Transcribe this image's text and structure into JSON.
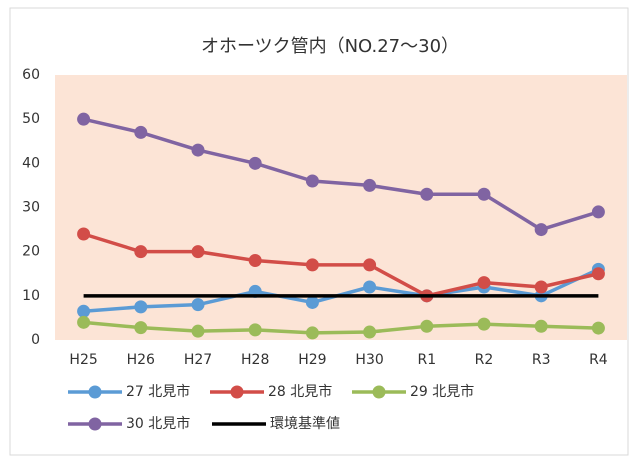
{
  "chart_data": {
    "type": "line",
    "title": "オホーツク管内（NO.27～30）",
    "categories": [
      "H25",
      "H26",
      "H27",
      "H28",
      "H29",
      "H30",
      "R1",
      "R2",
      "R3",
      "R4"
    ],
    "series": [
      {
        "name": "27 北見市",
        "color": "#5b9bd5",
        "marker": true,
        "values": [
          6.5,
          7.5,
          8,
          11,
          8.5,
          12,
          10,
          12,
          10,
          16
        ]
      },
      {
        "name": "28 北見市",
        "color": "#d24d48",
        "marker": true,
        "values": [
          24,
          20,
          20,
          18,
          17,
          17,
          10,
          13,
          12,
          15
        ]
      },
      {
        "name": "29 北見市",
        "color": "#9bbb59",
        "marker": true,
        "values": [
          4,
          2.8,
          2,
          2.3,
          1.6,
          1.8,
          3.1,
          3.6,
          3.1,
          2.7
        ]
      },
      {
        "name": "30 北見市",
        "color": "#8064a2",
        "marker": true,
        "values": [
          50,
          47,
          43,
          40,
          36,
          35,
          33,
          33,
          25,
          29
        ]
      },
      {
        "name": "環境基準値",
        "color": "#000000",
        "marker": false,
        "values": [
          10,
          10,
          10,
          10,
          10,
          10,
          10,
          10,
          10,
          10
        ]
      }
    ],
    "ylim": [
      0,
      60
    ],
    "yticks": [
      0,
      10,
      20,
      30,
      40,
      50,
      60
    ],
    "plot_background": "#fce4d6"
  }
}
